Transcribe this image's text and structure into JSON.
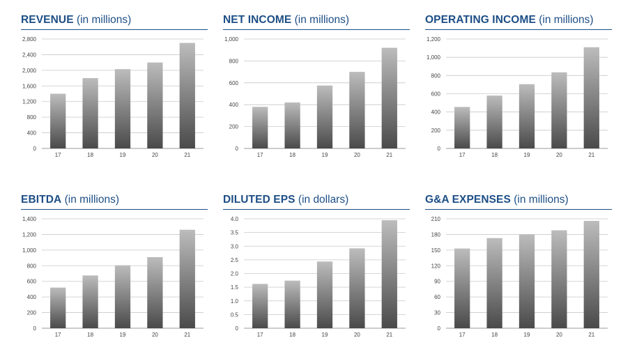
{
  "chart_data": [
    {
      "type": "bar",
      "title": "REVENUE",
      "unit": "(in millions)",
      "categories": [
        "17",
        "18",
        "19",
        "20",
        "21"
      ],
      "values": [
        1400,
        1800,
        2030,
        2200,
        2700
      ],
      "ylim": [
        0,
        2800
      ],
      "yticks": [
        "0",
        "400",
        "800",
        "1,200",
        "1,600",
        "2,000",
        "2,400",
        "2,800"
      ],
      "grid": true
    },
    {
      "type": "bar",
      "title": "NET INCOME",
      "unit": "(in millions)",
      "categories": [
        "17",
        "18",
        "19",
        "20",
        "21"
      ],
      "values": [
        380,
        420,
        575,
        700,
        920
      ],
      "ylim": [
        0,
        1000
      ],
      "yticks": [
        "0",
        "200",
        "400",
        "600",
        "800",
        "1,000"
      ],
      "grid": true
    },
    {
      "type": "bar",
      "title": "OPERATING INCOME",
      "unit": "(in millions)",
      "categories": [
        "17",
        "18",
        "19",
        "20",
        "21"
      ],
      "values": [
        455,
        580,
        705,
        835,
        1110
      ],
      "ylim": [
        0,
        1200
      ],
      "yticks": [
        "0",
        "200",
        "400",
        "600",
        "800",
        "1,000",
        "1,200"
      ],
      "grid": true
    },
    {
      "type": "bar",
      "title": "EBITDA",
      "unit": "(in millions)",
      "categories": [
        "17",
        "18",
        "19",
        "20",
        "21"
      ],
      "values": [
        520,
        675,
        805,
        910,
        1260
      ],
      "ylim": [
        0,
        1400
      ],
      "yticks": [
        "0",
        "200",
        "400",
        "600",
        "800",
        "1,000",
        "1,200",
        "1,400"
      ],
      "grid": true
    },
    {
      "type": "bar",
      "title": "DILUTED EPS",
      "unit": "(in dollars)",
      "categories": [
        "17",
        "18",
        "19",
        "20",
        "21"
      ],
      "values": [
        1.62,
        1.74,
        2.44,
        2.92,
        3.95
      ],
      "ylim": [
        0,
        4.0
      ],
      "yticks": [
        "0",
        "0.5",
        "1.0",
        "1.5",
        "2.0",
        "2.5",
        "3.0",
        "3.5",
        "4.0"
      ],
      "grid": true
    },
    {
      "type": "bar",
      "title": "G&A EXPENSES",
      "unit": "(in millions)",
      "categories": [
        "17",
        "18",
        "19",
        "20",
        "21"
      ],
      "values": [
        153,
        173,
        180,
        188,
        206
      ],
      "ylim": [
        0,
        210
      ],
      "yticks": [
        "0",
        "30",
        "60",
        "90",
        "120",
        "150",
        "180",
        "210"
      ],
      "grid": true
    }
  ]
}
